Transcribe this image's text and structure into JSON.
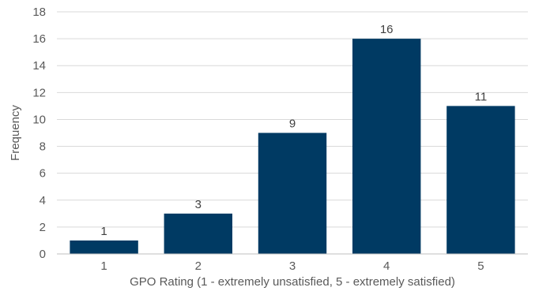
{
  "chart_data": {
    "type": "bar",
    "categories": [
      "1",
      "2",
      "3",
      "4",
      "5"
    ],
    "values": [
      1,
      3,
      9,
      16,
      11
    ],
    "data_labels": [
      "1",
      "3",
      "9",
      "16",
      "11"
    ],
    "xlabel": "GPO Rating (1 - extremely unsatisfied, 5 - extremely satisfied)",
    "ylabel": "Frequency",
    "ylim": [
      0,
      18
    ],
    "yticks": [
      "0",
      "2",
      "4",
      "6",
      "8",
      "10",
      "12",
      "14",
      "16",
      "18"
    ],
    "grid": true,
    "legend": "none",
    "bar_color": "#003a63"
  }
}
